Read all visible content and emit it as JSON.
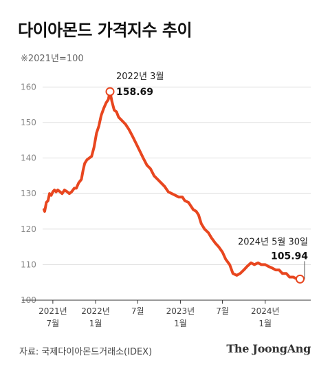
{
  "header": {
    "title": "다이아몬드 가격지수 추이",
    "subtitle": "※2021년=100"
  },
  "footer": {
    "source": "자료: 국제다이아몬드거래소(IDEX)",
    "brand": "The JoongAng"
  },
  "colors": {
    "line": "#e8461f",
    "grid": "#dddddd",
    "axis": "#333333"
  },
  "chart_data": {
    "type": "line",
    "title": "다이아몬드 가격지수 추이",
    "subtitle": "※2021년=100",
    "x_tick_labels": [
      {
        "date": "2021-07",
        "line1": "2021년",
        "line2": "7월"
      },
      {
        "date": "2022-01",
        "line1": "2022년",
        "line2": "1월"
      },
      {
        "date": "2022-07",
        "line1": "7월",
        "line2": ""
      },
      {
        "date": "2023-01",
        "line1": "2023년",
        "line2": "1월"
      },
      {
        "date": "2023-07",
        "line1": "7월",
        "line2": ""
      },
      {
        "date": "2024-01",
        "line1": "2024년",
        "line2": "1월"
      }
    ],
    "y_ticks": [
      100,
      110,
      120,
      130,
      140,
      150,
      160
    ],
    "ylim": [
      100,
      162
    ],
    "xlim": [
      "2021-05-18",
      "2024-07-15"
    ],
    "grid": true,
    "series": [
      {
        "points": [
          [
            "2021-05-24",
            125.5
          ],
          [
            "2021-05-27",
            125.0
          ],
          [
            "2021-06-03",
            127.5
          ],
          [
            "2021-06-10",
            128.0
          ],
          [
            "2021-06-17",
            130.0
          ],
          [
            "2021-06-24",
            129.5
          ],
          [
            "2021-07-01",
            130.5
          ],
          [
            "2021-07-08",
            131.0
          ],
          [
            "2021-07-15",
            130.5
          ],
          [
            "2021-07-22",
            131.0
          ],
          [
            "2021-08-01",
            130.5
          ],
          [
            "2021-08-10",
            130.0
          ],
          [
            "2021-08-20",
            131.0
          ],
          [
            "2021-09-01",
            130.5
          ],
          [
            "2021-09-10",
            130.0
          ],
          [
            "2021-09-20",
            130.5
          ],
          [
            "2021-10-01",
            131.5
          ],
          [
            "2021-10-10",
            131.5
          ],
          [
            "2021-10-20",
            133.0
          ],
          [
            "2021-11-01",
            134.0
          ],
          [
            "2021-11-08",
            136.5
          ],
          [
            "2021-11-15",
            138.5
          ],
          [
            "2021-11-25",
            139.5
          ],
          [
            "2021-12-05",
            140.0
          ],
          [
            "2021-12-15",
            140.5
          ],
          [
            "2021-12-25",
            143.0
          ],
          [
            "2022-01-05",
            147.0
          ],
          [
            "2022-01-15",
            149.0
          ],
          [
            "2022-01-25",
            152.0
          ],
          [
            "2022-02-05",
            154.0
          ],
          [
            "2022-02-15",
            155.5
          ],
          [
            "2022-02-25",
            156.5
          ],
          [
            "2022-03-04",
            158.69
          ],
          [
            "2022-03-12",
            156.0
          ],
          [
            "2022-03-22",
            153.5
          ],
          [
            "2022-04-01",
            153.0
          ],
          [
            "2022-04-10",
            151.5
          ],
          [
            "2022-04-25",
            150.5
          ],
          [
            "2022-05-10",
            149.5
          ],
          [
            "2022-05-25",
            148.0
          ],
          [
            "2022-06-10",
            146.0
          ],
          [
            "2022-06-25",
            144.0
          ],
          [
            "2022-07-10",
            142.0
          ],
          [
            "2022-07-25",
            140.0
          ],
          [
            "2022-08-10",
            138.0
          ],
          [
            "2022-08-25",
            137.0
          ],
          [
            "2022-09-10",
            135.0
          ],
          [
            "2022-09-25",
            134.0
          ],
          [
            "2022-10-10",
            133.0
          ],
          [
            "2022-10-25",
            132.0
          ],
          [
            "2022-11-10",
            130.5
          ],
          [
            "2022-11-25",
            130.0
          ],
          [
            "2022-12-10",
            129.5
          ],
          [
            "2022-12-25",
            129.0
          ],
          [
            "2023-01-10",
            129.0
          ],
          [
            "2023-01-20",
            128.0
          ],
          [
            "2023-02-05",
            127.5
          ],
          [
            "2023-02-15",
            126.5
          ],
          [
            "2023-02-25",
            125.5
          ],
          [
            "2023-03-10",
            125.0
          ],
          [
            "2023-03-20",
            124.0
          ],
          [
            "2023-04-01",
            121.5
          ],
          [
            "2023-04-15",
            120.0
          ],
          [
            "2023-05-01",
            119.0
          ],
          [
            "2023-05-15",
            117.5
          ],
          [
            "2023-06-01",
            116.0
          ],
          [
            "2023-06-15",
            115.0
          ],
          [
            "2023-07-01",
            113.5
          ],
          [
            "2023-07-15",
            111.5
          ],
          [
            "2023-08-01",
            110.0
          ],
          [
            "2023-08-15",
            107.5
          ],
          [
            "2023-09-01",
            107.0
          ],
          [
            "2023-09-15",
            107.5
          ],
          [
            "2023-10-01",
            108.5
          ],
          [
            "2023-10-15",
            109.5
          ],
          [
            "2023-11-01",
            110.5
          ],
          [
            "2023-11-15",
            110.0
          ],
          [
            "2023-12-01",
            110.5
          ],
          [
            "2023-12-15",
            110.0
          ],
          [
            "2024-01-01",
            110.0
          ],
          [
            "2024-01-15",
            109.5
          ],
          [
            "2024-02-01",
            109.0
          ],
          [
            "2024-02-15",
            108.5
          ],
          [
            "2024-03-01",
            108.5
          ],
          [
            "2024-03-15",
            107.5
          ],
          [
            "2024-04-01",
            107.5
          ],
          [
            "2024-04-15",
            106.5
          ],
          [
            "2024-05-01",
            106.5
          ],
          [
            "2024-05-15",
            106.0
          ],
          [
            "2024-05-30",
            105.94
          ]
        ]
      }
    ],
    "annotations": [
      {
        "date": "2022-03-04",
        "value": 158.69,
        "label_date": "2022년 3월",
        "label_value": "158.69"
      },
      {
        "date": "2024-05-30",
        "value": 105.94,
        "label_date": "2024년 5월 30일",
        "label_value": "105.94"
      }
    ]
  }
}
